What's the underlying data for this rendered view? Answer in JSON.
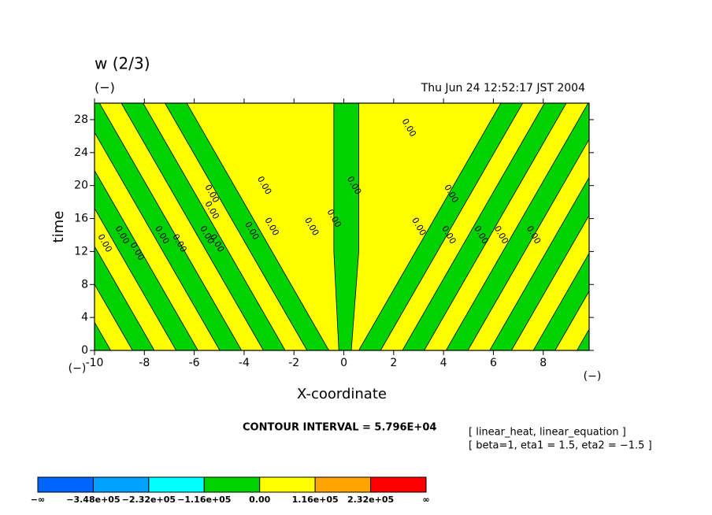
{
  "chart_data": {
    "type": "contour",
    "title": "w (2/3)",
    "units": "(−)",
    "date": "Thu Jun 24 12:52:17 JST 2004",
    "xlabel": "X-coordinate",
    "ylabel": "time",
    "x_units": "(−)",
    "y_units": "(−)",
    "xlim": [
      -10,
      9.84
    ],
    "ylim": [
      0,
      30
    ],
    "xticks": [
      -10,
      -8,
      -6,
      -4,
      -2,
      0,
      2,
      4,
      6,
      8
    ],
    "yticks": [
      0,
      4,
      8,
      12,
      16,
      20,
      24,
      28
    ],
    "contour_labels": [
      "0.00",
      "0.00",
      "0.00",
      "0.00",
      "0.00",
      "0.00",
      "0.00",
      "0.00",
      "0.00",
      "0.00",
      "0.00",
      "0.00",
      "0.00",
      "0.00",
      "0.00",
      "0.00",
      "0.00",
      "0.00",
      "0.00",
      "0.00",
      "0.00",
      "0.00"
    ],
    "contour_interval": "CONTOUR INTERVAL = 5.796E+04",
    "notes": [
      "[ linear_heat, linear_equation ]",
      "[ beta=1, eta1 = 1.5, eta2 = −1.5 ]"
    ],
    "colorbar": {
      "colors": [
        "#0064ff",
        "#00a0ff",
        "#00ffff",
        "#00d200",
        "#ffff00",
        "#ffa500",
        "#ff0000"
      ],
      "ticks": [
        {
          "value": null,
          "label": "−∞"
        },
        {
          "value": -348000,
          "label": "−3.48e+05"
        },
        {
          "value": -232000,
          "label": "−2.32e+05"
        },
        {
          "value": -116000,
          "label": "−1.16e+05"
        },
        {
          "value": 0,
          "label": "0.00"
        },
        {
          "value": 116000,
          "label": "1.16e+05"
        },
        {
          "value": 232000,
          "label": "2.32e+05"
        },
        {
          "value": null,
          "label": "∞"
        }
      ]
    }
  }
}
